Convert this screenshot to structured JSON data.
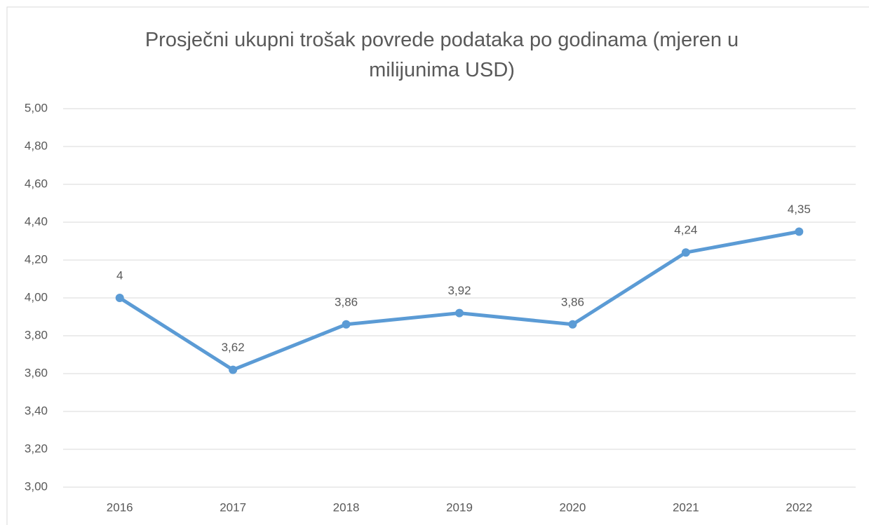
{
  "chart_data": {
    "type": "line",
    "title": "Prosječni ukupni trošak povrede podataka po godinama (mjeren u milijunima USD)",
    "categories": [
      "2016",
      "2017",
      "2018",
      "2019",
      "2020",
      "2021",
      "2022"
    ],
    "series": [
      {
        "name": "Prosječni ukupni trošak",
        "color": "#5b9bd5",
        "values": [
          4,
          3.62,
          3.86,
          3.92,
          3.86,
          4.24,
          4.35
        ],
        "value_labels": [
          "4",
          "3,62",
          "3,86",
          "3,92",
          "3,86",
          "4,24",
          "4,35"
        ]
      }
    ],
    "ylim": [
      3,
      5
    ],
    "yticks": [
      {
        "value": 3,
        "label": "3,00"
      },
      {
        "value": 3.2,
        "label": "3,20"
      },
      {
        "value": 3.4,
        "label": "3,40"
      },
      {
        "value": 3.6,
        "label": "3,60"
      },
      {
        "value": 3.8,
        "label": "3,80"
      },
      {
        "value": 4,
        "label": "4,00"
      },
      {
        "value": 4.2,
        "label": "4,20"
      },
      {
        "value": 4.4,
        "label": "4,40"
      },
      {
        "value": 4.6,
        "label": "4,60"
      },
      {
        "value": 4.8,
        "label": "4,80"
      },
      {
        "value": 5,
        "label": "5,00"
      }
    ],
    "grid": true
  }
}
